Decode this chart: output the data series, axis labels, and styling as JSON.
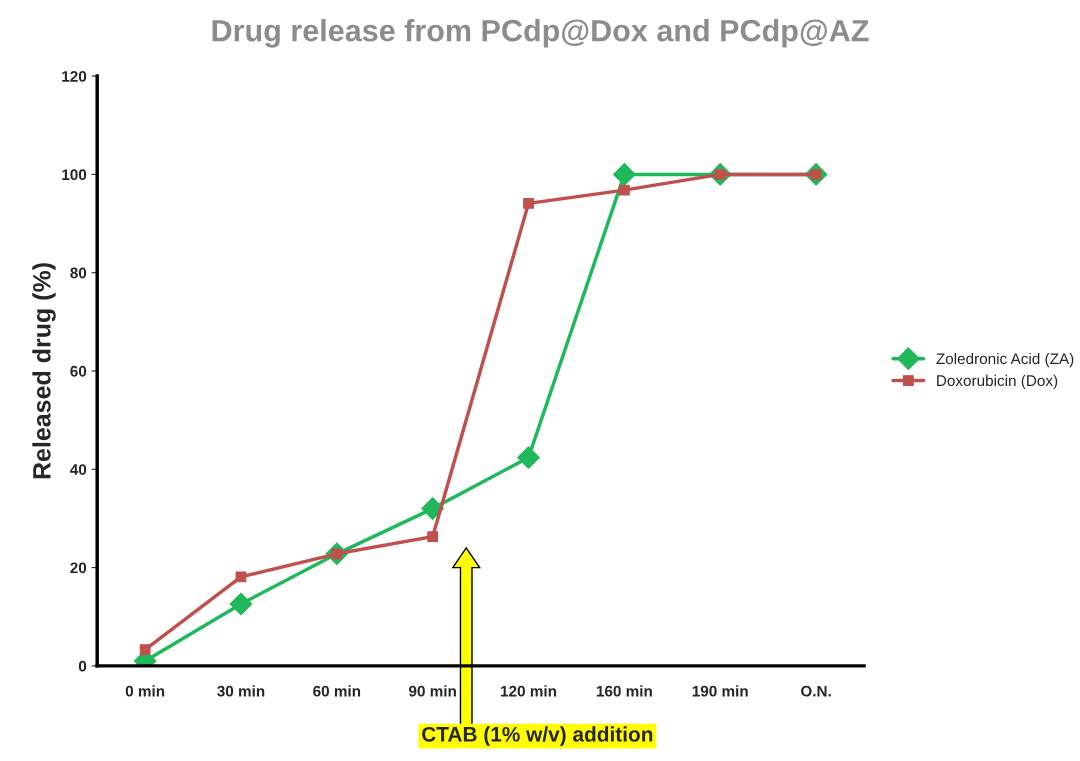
{
  "chart_data": {
    "type": "line",
    "title": "Drug release from PCdp@Dox and PCdp@AZ",
    "ylabel": "Released drug (%)",
    "categories": [
      "0 min",
      "30 min",
      "60 min",
      "90 min",
      "120 min",
      "160 min",
      "190 min",
      "O.N."
    ],
    "series": [
      {
        "name": "Zoledronic Acid (ZA)",
        "color": "#1fb85a",
        "marker": "diamond",
        "values": [
          1,
          12.6,
          22.8,
          32,
          42.4,
          100,
          100,
          100
        ]
      },
      {
        "name": "Doxorubicin (Dox)",
        "color": "#c0504d",
        "marker": "square",
        "values": [
          3.3,
          18.1,
          22.8,
          26.3,
          94.1,
          96.8,
          100,
          100
        ]
      }
    ],
    "ylim": [
      0,
      120
    ],
    "yticks": [
      0,
      20,
      40,
      60,
      80,
      100,
      120
    ],
    "grid": false,
    "legend": "right",
    "annotations": [
      "CTAB (1% w/v) addition"
    ]
  }
}
